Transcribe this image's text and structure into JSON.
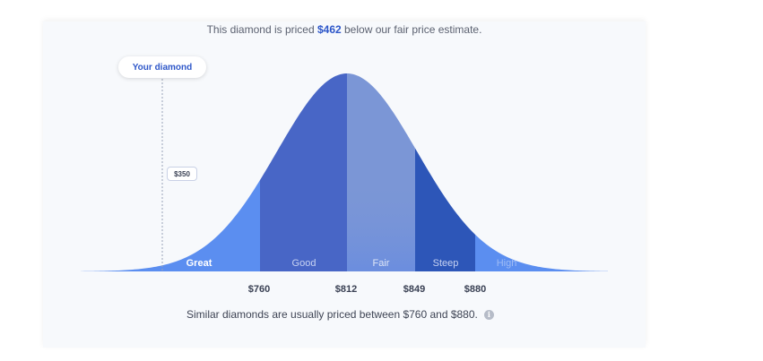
{
  "header": {
    "text_before": "This diamond is priced ",
    "amount": "$462",
    "text_after": " below our fair price estimate."
  },
  "your_diamond": {
    "label": "Your diamond",
    "price": "$350"
  },
  "segments": [
    {
      "label": "Great",
      "color": "#5b8ef0"
    },
    {
      "label": "Good",
      "color": "#4866c6"
    },
    {
      "label": "Fair",
      "color": "#7b96d6"
    },
    {
      "label": "Steep",
      "color": "#2d56b8"
    },
    {
      "label": "High",
      "color": "#5b8ef0"
    }
  ],
  "price_ticks": [
    "$760",
    "$812",
    "$849",
    "$880"
  ],
  "footer": {
    "text": "Similar diamonds are usually priced between $760 and $880.",
    "info_icon": "i"
  },
  "colors": {
    "accent": "#2e57c9",
    "background": "#f7f9fc"
  }
}
